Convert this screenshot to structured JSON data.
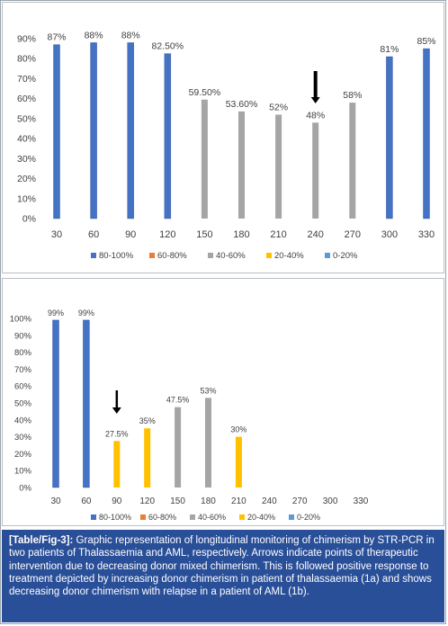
{
  "chart_data": [
    {
      "type": "bar",
      "title": "",
      "xlabel": "",
      "ylabel": "",
      "categories": [
        "30",
        "60",
        "90",
        "120",
        "150",
        "180",
        "210",
        "240",
        "270",
        "300",
        "330"
      ],
      "values": [
        87,
        88,
        88,
        82.5,
        59.5,
        53.6,
        52,
        48,
        58,
        81,
        85
      ],
      "data_labels": [
        "87%",
        "88%",
        "88%",
        "82.50%",
        "59.50%",
        "53.60%",
        "52%",
        "48%",
        "58%",
        "81%",
        "85%"
      ],
      "bar_series": [
        "80-100%",
        "80-100%",
        "80-100%",
        "80-100%",
        "40-60%",
        "40-60%",
        "40-60%",
        "40-60%",
        "40-60%",
        "80-100%",
        "80-100%"
      ],
      "ylim": [
        0,
        90
      ],
      "yticks": [
        0,
        10,
        20,
        30,
        40,
        50,
        60,
        70,
        80,
        90
      ],
      "ytick_labels": [
        "0%",
        "10%",
        "20%",
        "30%",
        "40%",
        "50%",
        "60%",
        "70%",
        "80%",
        "90%"
      ],
      "arrow_at": "240",
      "legend": [
        {
          "name": "80-100%",
          "color": "#4472c4"
        },
        {
          "name": "60-80%",
          "color": "#ed7d31"
        },
        {
          "name": "40-60%",
          "color": "#a5a5a5"
        },
        {
          "name": "20-40%",
          "color": "#ffc000"
        },
        {
          "name": "0-20%",
          "color": "#5b9bd5"
        }
      ],
      "legend_position": "bottom",
      "grid": false
    },
    {
      "type": "bar",
      "title": "",
      "xlabel": "",
      "ylabel": "",
      "categories": [
        "30",
        "60",
        "90",
        "120",
        "150",
        "180",
        "210",
        "240",
        "270",
        "300",
        "330"
      ],
      "values": [
        99,
        99,
        27.5,
        35,
        47.5,
        53,
        30,
        null,
        null,
        null,
        null
      ],
      "data_labels": [
        "99%",
        "99%",
        "27.5%",
        "35%",
        "47.5%",
        "53%",
        "30%",
        "",
        "",
        "",
        ""
      ],
      "bar_series": [
        "80-100%",
        "80-100%",
        "20-40%",
        "20-40%",
        "40-60%",
        "40-60%",
        "20-40%",
        "",
        "",
        "",
        ""
      ],
      "ylim": [
        0,
        100
      ],
      "yticks": [
        0,
        10,
        20,
        30,
        40,
        50,
        60,
        70,
        80,
        90,
        100
      ],
      "ytick_labels": [
        "0%",
        "10%",
        "20%",
        "30%",
        "40%",
        "50%",
        "60%",
        "70%",
        "80%",
        "90%",
        "100%"
      ],
      "arrow_at": "90",
      "legend": [
        {
          "name": "80-100%",
          "color": "#4472c4"
        },
        {
          "name": "60-80%",
          "color": "#ed7d31"
        },
        {
          "name": "40-60%",
          "color": "#a5a5a5"
        },
        {
          "name": "20-40%",
          "color": "#ffc000"
        },
        {
          "name": "0-20%",
          "color": "#5b9bd5"
        }
      ],
      "legend_position": "bottom",
      "grid": false
    }
  ],
  "colors": {
    "bar_edge_dark": "#1f3f8f",
    "caption_bg": "#2a4f99",
    "arrow": "#000000"
  },
  "caption": {
    "tag": "[Table/Fig-3]:",
    "text": " Graphic representation of longitudinal monitoring of chimerism by STR-PCR in two patients of Thalassaemia and AML, respectively. Arrows indicate points of therapeutic intervention due to decreasing donor mixed chimerism. This is followed positive response to treatment depicted by increasing donor chimerism in patient of thalassaemia (1a) and shows decreasing donor chimerism with relapse in a patient of AML (1b)."
  }
}
